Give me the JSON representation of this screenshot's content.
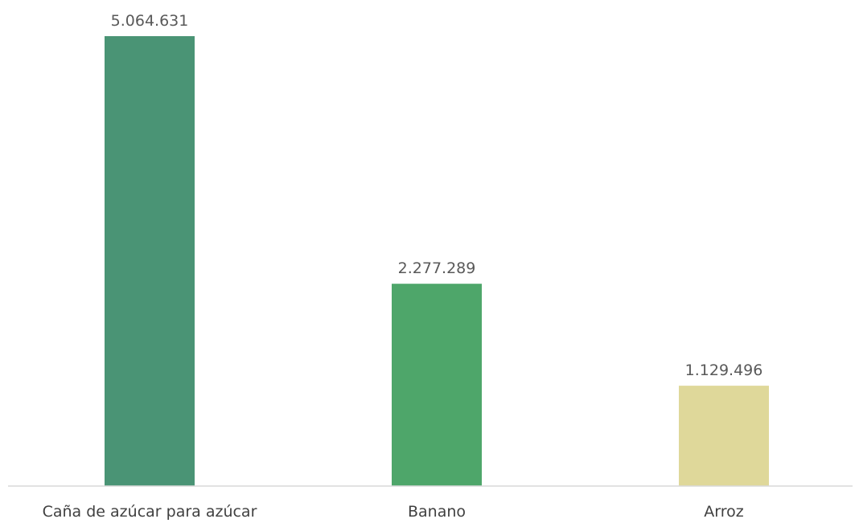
{
  "chart_data": {
    "type": "bar",
    "title": "",
    "xlabel": "",
    "ylabel": "",
    "categories": [
      "Caña de azúcar para azúcar",
      "Banano",
      "Arroz"
    ],
    "values": [
      5064631,
      2277289,
      1129496
    ],
    "value_labels": [
      "5.064.631",
      "2.277.289",
      "1.129.496"
    ],
    "colors": [
      "#4a9475",
      "#4ea66a",
      "#dfd89a"
    ],
    "ylim": [
      0,
      5064631
    ],
    "grid": false,
    "legend": "none"
  }
}
